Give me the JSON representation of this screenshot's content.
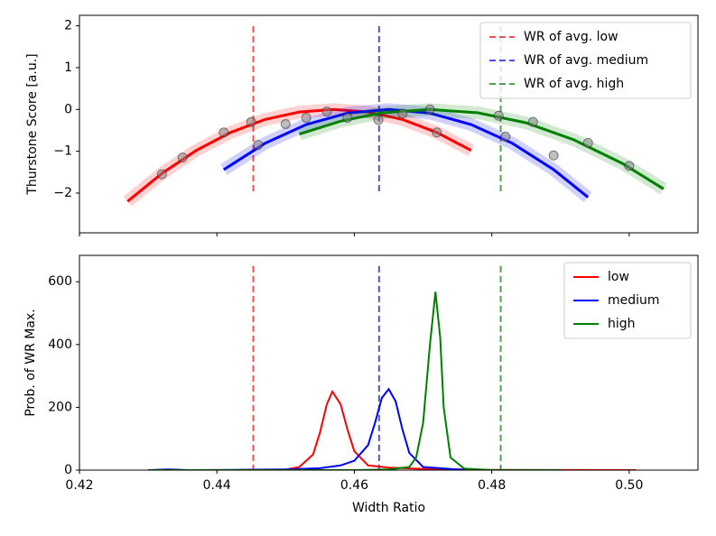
{
  "chart_data": [
    {
      "type": "curves",
      "ylabel": "Thurstone Score [a.u.]",
      "xlim": [
        0.42,
        0.51
      ],
      "xticks": [
        0.42,
        0.44,
        0.46,
        0.48,
        {
          "value": 0.5,
          "label": "0.50"
        }
      ],
      "ylim": [
        -2.95,
        2.25
      ],
      "yticks": [
        {
          "value": -2,
          "label": "−2"
        },
        {
          "value": -1,
          "label": "−1"
        },
        0,
        1,
        2
      ],
      "legend": "upper right",
      "vlines": [
        {
          "name": "WR of avg. low",
          "color": "#f05050",
          "x": 0.4453
        },
        {
          "name": "WR of avg. medium",
          "color": "#5050f0",
          "x": 0.4636
        },
        {
          "name": "WR of avg. high",
          "color": "#50a050",
          "x": 0.4813
        }
      ],
      "series": [
        {
          "color": "#ff0000",
          "x": [
            0.427,
            0.432,
            0.437,
            0.442,
            0.447,
            0.452,
            0.457,
            0.462,
            0.467,
            0.472,
            0.477
          ],
          "values": [
            -2.2,
            -1.53,
            -0.98,
            -0.55,
            -0.24,
            -0.06,
            0,
            -0.06,
            -0.24,
            -0.55,
            -0.98
          ]
        },
        {
          "color": "#0000ff",
          "x": [
            0.441,
            0.447,
            0.453,
            0.459,
            0.465,
            0.471,
            0.477,
            0.483,
            0.489,
            0.494
          ],
          "values": [
            -1.44,
            -0.81,
            -0.36,
            -0.09,
            0,
            -0.09,
            -0.36,
            -0.81,
            -1.44,
            -2.1
          ]
        },
        {
          "color": "#008000",
          "x": [
            0.452,
            0.458,
            0.464,
            0.471,
            0.478,
            0.485,
            0.492,
            0.499,
            0.505
          ],
          "values": [
            -0.59,
            -0.28,
            -0.08,
            0,
            -0.08,
            -0.32,
            -0.73,
            -1.29,
            -1.9
          ]
        }
      ],
      "points": {
        "color": "#808080",
        "x": [
          0.432,
          0.435,
          0.441,
          0.445,
          0.446,
          0.45,
          0.453,
          0.456,
          0.459,
          0.4635,
          0.467,
          0.471,
          0.472,
          0.481,
          0.482,
          0.486,
          0.489,
          0.494,
          0.5
        ],
        "y": [
          -1.55,
          -1.15,
          -0.55,
          -0.3,
          -0.85,
          -0.35,
          -0.2,
          -0.05,
          -0.2,
          -0.25,
          -0.1,
          0,
          -0.55,
          -0.15,
          -0.65,
          -0.3,
          -1.1,
          -0.8,
          -1.35
        ]
      }
    },
    {
      "type": "line",
      "xlabel": "Width Ratio",
      "ylabel": "Prob. of WR Max.",
      "xlim": [
        0.42,
        0.51
      ],
      "xticks": [
        0.42,
        0.44,
        0.46,
        0.48,
        {
          "value": 0.5,
          "label": "0.50"
        }
      ],
      "ylim": [
        0,
        684
      ],
      "yticks": [
        0,
        200,
        400,
        600
      ],
      "legend": "upper right",
      "vlines": [
        {
          "color": "#f05050",
          "x": 0.4453
        },
        {
          "color": "#5050f0",
          "x": 0.4636
        },
        {
          "color": "#50a050",
          "x": 0.4813
        }
      ],
      "series": [
        {
          "name": "low",
          "color": "#ff0000",
          "x": [
            0.43,
            0.445,
            0.45,
            0.452,
            0.454,
            0.455,
            0.456,
            0.4568,
            0.458,
            0.459,
            0.46,
            0.462,
            0.465,
            0.47,
            0.48,
            0.501
          ],
          "values": [
            0,
            0,
            2,
            10,
            50,
            120,
            210,
            250,
            210,
            130,
            60,
            15,
            8,
            4,
            1,
            0
          ]
        },
        {
          "name": "medium",
          "color": "#0000ff",
          "x": [
            0.43,
            0.433,
            0.436,
            0.45,
            0.455,
            0.458,
            0.46,
            0.462,
            0.463,
            0.464,
            0.465,
            0.466,
            0.467,
            0.468,
            0.47,
            0.475,
            0.48,
            0.49
          ],
          "values": [
            0,
            2,
            0,
            2,
            6,
            15,
            30,
            80,
            150,
            230,
            258,
            220,
            130,
            55,
            10,
            2,
            0,
            0
          ]
        },
        {
          "name": "high",
          "color": "#008000",
          "x": [
            0.43,
            0.46,
            0.465,
            0.468,
            0.469,
            0.47,
            0.471,
            0.4718,
            0.4725,
            0.473,
            0.474,
            0.476,
            0.48,
            0.49
          ],
          "values": [
            0,
            0,
            2,
            10,
            40,
            150,
            400,
            568,
            420,
            200,
            40,
            5,
            0,
            0
          ]
        }
      ]
    }
  ]
}
